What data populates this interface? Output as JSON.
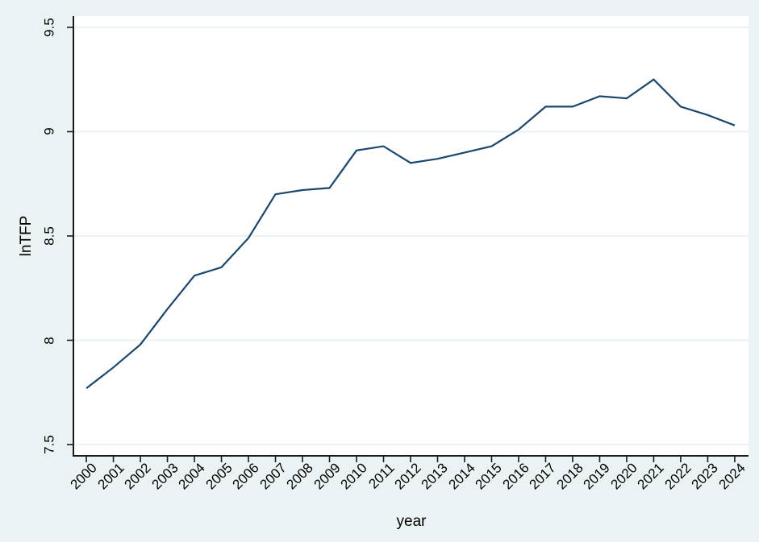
{
  "chart_data": {
    "type": "line",
    "title": "",
    "xlabel": "year",
    "ylabel": "lnTFP",
    "x": [
      2000,
      2001,
      2002,
      2003,
      2004,
      2005,
      2006,
      2007,
      2008,
      2009,
      2010,
      2011,
      2012,
      2013,
      2014,
      2015,
      2016,
      2017,
      2018,
      2019,
      2020,
      2021,
      2022,
      2023,
      2024
    ],
    "series": [
      {
        "name": "lnTFP",
        "values": [
          7.77,
          7.87,
          7.98,
          8.15,
          8.31,
          8.35,
          8.49,
          8.7,
          8.72,
          8.73,
          8.91,
          8.93,
          8.85,
          8.87,
          8.9,
          8.93,
          9.01,
          9.12,
          9.12,
          9.17,
          9.16,
          9.25,
          9.12,
          9.08,
          9.03
        ]
      }
    ],
    "xtick_labels": [
      "2000",
      "2001",
      "2002",
      "2003",
      "2004",
      "2005",
      "2006",
      "2007",
      "2008",
      "2009",
      "2010",
      "2011",
      "2012",
      "2013",
      "2014",
      "2015",
      "2016",
      "2017",
      "2018",
      "2019",
      "2020",
      "2021",
      "2022",
      "2023",
      "2024"
    ],
    "yticks": [
      7.5,
      8,
      8.5,
      9,
      9.5
    ],
    "ytick_labels": [
      "7.5",
      "8",
      "8.5",
      "9",
      "9.5"
    ],
    "xlim": [
      1999.52,
      2024.51
    ],
    "ylim": [
      7.446,
      9.554
    ],
    "grid": "horizontal-only",
    "legend": "none"
  },
  "style": {
    "figure_background": "#eaf2f3",
    "plot_background": "#ffffff",
    "grid_color": "#eaf2f3",
    "line_color": "#1a476f",
    "axis_color": "#1a1a1a",
    "text_color": "#000000"
  }
}
